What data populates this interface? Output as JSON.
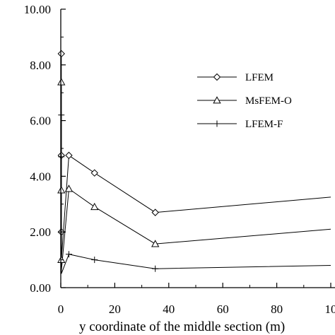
{
  "chart_data": {
    "type": "line",
    "xlabel": "y coordinate of the middle section (m)",
    "ylabel": "",
    "xlim": [
      0,
      100
    ],
    "ylim": [
      0,
      10
    ],
    "x_ticks": [
      "0",
      "20",
      "40",
      "60",
      "80",
      "10"
    ],
    "y_ticks": [
      "0.00",
      "2.00",
      "4.00",
      "6.00",
      "8.00",
      "10.00"
    ],
    "grid": false,
    "legend_position": "right",
    "series": [
      {
        "name": "LFEM",
        "marker": "diamond",
        "marker_points": [
          [
            0.2,
            8.4
          ],
          [
            0.2,
            4.75
          ],
          [
            0.2,
            2.0
          ],
          [
            3,
            4.75
          ],
          [
            12.5,
            4.12
          ],
          [
            35,
            2.7
          ]
        ],
        "line_points": [
          [
            0.2,
            8.4
          ],
          [
            0.2,
            4.75
          ],
          [
            0.2,
            2.0
          ],
          [
            0.2,
            1.0
          ],
          [
            3,
            4.75
          ],
          [
            12.5,
            4.12
          ],
          [
            35,
            2.7
          ],
          [
            100,
            3.25
          ]
        ]
      },
      {
        "name": "MsFEM-O",
        "marker": "triangle",
        "marker_points": [
          [
            0.2,
            7.38
          ],
          [
            0.2,
            3.5
          ],
          [
            0.2,
            1.0
          ],
          [
            3,
            3.55
          ],
          [
            12.5,
            2.9
          ],
          [
            35,
            1.57
          ]
        ],
        "line_points": [
          [
            0.2,
            7.38
          ],
          [
            0.2,
            3.5
          ],
          [
            0.2,
            1.0
          ],
          [
            0.2,
            0.6
          ],
          [
            3,
            3.55
          ],
          [
            12.5,
            2.9
          ],
          [
            35,
            1.57
          ],
          [
            100,
            2.1
          ]
        ]
      },
      {
        "name": "LFEM-F",
        "marker": "plus",
        "marker_points": [
          [
            0.2,
            6.2
          ],
          [
            0.2,
            4.7
          ],
          [
            0.2,
            2.0
          ],
          [
            3,
            1.2
          ],
          [
            12.5,
            1.0
          ],
          [
            35,
            0.68
          ]
        ],
        "line_points": [
          [
            0.2,
            6.2
          ],
          [
            0.2,
            4.7
          ],
          [
            0.2,
            2.0
          ],
          [
            0.2,
            0.5
          ],
          [
            3,
            1.2
          ],
          [
            12.5,
            1.0
          ],
          [
            35,
            0.68
          ],
          [
            100,
            0.8
          ]
        ]
      }
    ]
  }
}
